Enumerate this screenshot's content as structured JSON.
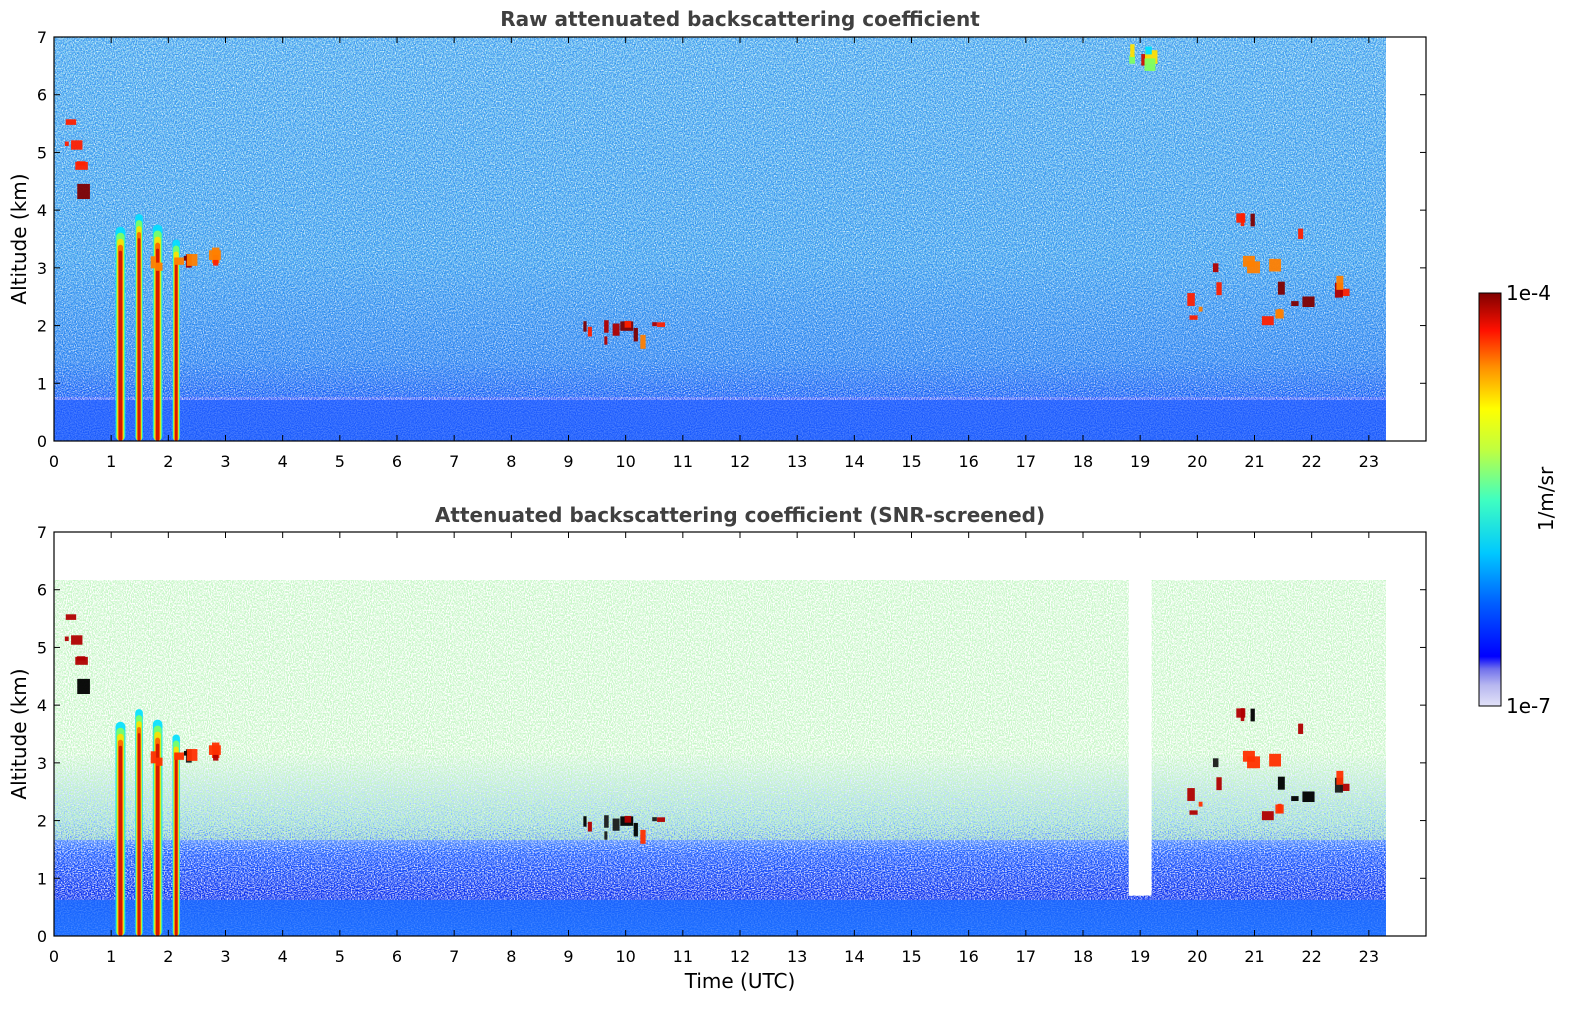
{
  "chart_data": [
    {
      "type": "heatmap",
      "title": "Raw attenuated backscattering coefficient",
      "xlabel": "",
      "ylabel": "Altitude (km)",
      "xlim": [
        0,
        24
      ],
      "ylim": [
        0,
        7
      ],
      "data_extent_x": [
        0,
        23.3
      ],
      "x_ticks": [
        "0",
        "1",
        "2",
        "3",
        "4",
        "5",
        "6",
        "7",
        "8",
        "9",
        "10",
        "11",
        "12",
        "13",
        "14",
        "15",
        "16",
        "17",
        "18",
        "19",
        "20",
        "21",
        "22",
        "23"
      ],
      "y_ticks": [
        "0",
        "1",
        "2",
        "3",
        "4",
        "5",
        "6",
        "7"
      ],
      "colorscale": "jet",
      "clim": [
        "1e-7",
        "1e-4"
      ],
      "background_field": "noisy, cyan aloft, blue increasing toward surface (boundary layer below ~0.8 km)",
      "features": [
        {
          "label": "aerosol/cloud columns",
          "x": [
            1.0,
            2.3
          ],
          "y": [
            0.0,
            4.1
          ],
          "level": "high"
        },
        {
          "label": "cloud layer",
          "x": [
            1.6,
            2.8
          ],
          "y": [
            3.0,
            3.4
          ],
          "level": "very high"
        },
        {
          "label": "elevated layer",
          "x": [
            0.1,
            0.5
          ],
          "y": [
            4.2,
            6.0
          ],
          "level": "very high"
        },
        {
          "label": "thin layer",
          "x": [
            9.2,
            10.8
          ],
          "y": [
            1.8,
            2.1
          ],
          "level": "very high"
        },
        {
          "label": "cloud patches",
          "x": [
            19.8,
            22.7
          ],
          "y": [
            2.1,
            4.0
          ],
          "level": "very high"
        },
        {
          "label": "cloud top",
          "x": [
            18.8,
            19.1
          ],
          "y": [
            6.4,
            7.0
          ],
          "level": "high"
        }
      ]
    },
    {
      "type": "heatmap",
      "title": "Attenuated backscattering coefficient (SNR-screened)",
      "xlabel": "Time (UTC)",
      "ylabel": "Altitude (km)",
      "xlim": [
        0,
        24
      ],
      "ylim": [
        0,
        7
      ],
      "data_extent_x": [
        0,
        23.3
      ],
      "x_ticks": [
        "0",
        "1",
        "2",
        "3",
        "4",
        "5",
        "6",
        "7",
        "8",
        "9",
        "10",
        "11",
        "12",
        "13",
        "14",
        "15",
        "16",
        "17",
        "18",
        "19",
        "20",
        "21",
        "22",
        "23"
      ],
      "y_ticks": [
        "0",
        "1",
        "2",
        "3",
        "4",
        "5",
        "6",
        "7"
      ],
      "colorscale": "jet",
      "clim": [
        "1e-7",
        "1e-4"
      ],
      "background_field": "low-SNR pixels removed (white); sparse green/yellow aloft, dense blue below ~2 km",
      "features": [
        {
          "label": "aerosol/cloud columns",
          "x": [
            1.0,
            2.3
          ],
          "y": [
            0.0,
            4.1
          ],
          "level": "high"
        },
        {
          "label": "cloud layer",
          "x": [
            1.6,
            2.8
          ],
          "y": [
            3.0,
            3.4
          ],
          "level": "saturated (black)"
        },
        {
          "label": "elevated layer",
          "x": [
            0.1,
            0.5
          ],
          "y": [
            4.2,
            6.0
          ],
          "level": "saturated (black)"
        },
        {
          "label": "thin layer",
          "x": [
            9.2,
            10.8
          ],
          "y": [
            1.8,
            2.1
          ],
          "level": "saturated (black)"
        },
        {
          "label": "cloud patches",
          "x": [
            19.8,
            22.7
          ],
          "y": [
            2.1,
            4.0
          ],
          "level": "saturated (black)"
        },
        {
          "label": "screened gap",
          "x": [
            18.8,
            19.2
          ],
          "y": [
            0.7,
            7.0
          ],
          "level": "removed"
        }
      ]
    }
  ],
  "colorbar": {
    "label": "1/m/sr",
    "max_label": "1e-4",
    "min_label": "1e-7",
    "colors": [
      "#dcdcf6",
      "#b4b4ee",
      "#8c8ce8",
      "#0000ff",
      "#0050ff",
      "#00a0ff",
      "#00d8ff",
      "#40ffc0",
      "#a0ff60",
      "#ffff00",
      "#ffc000",
      "#ff6000",
      "#ff0000",
      "#b00000",
      "#800000"
    ]
  }
}
